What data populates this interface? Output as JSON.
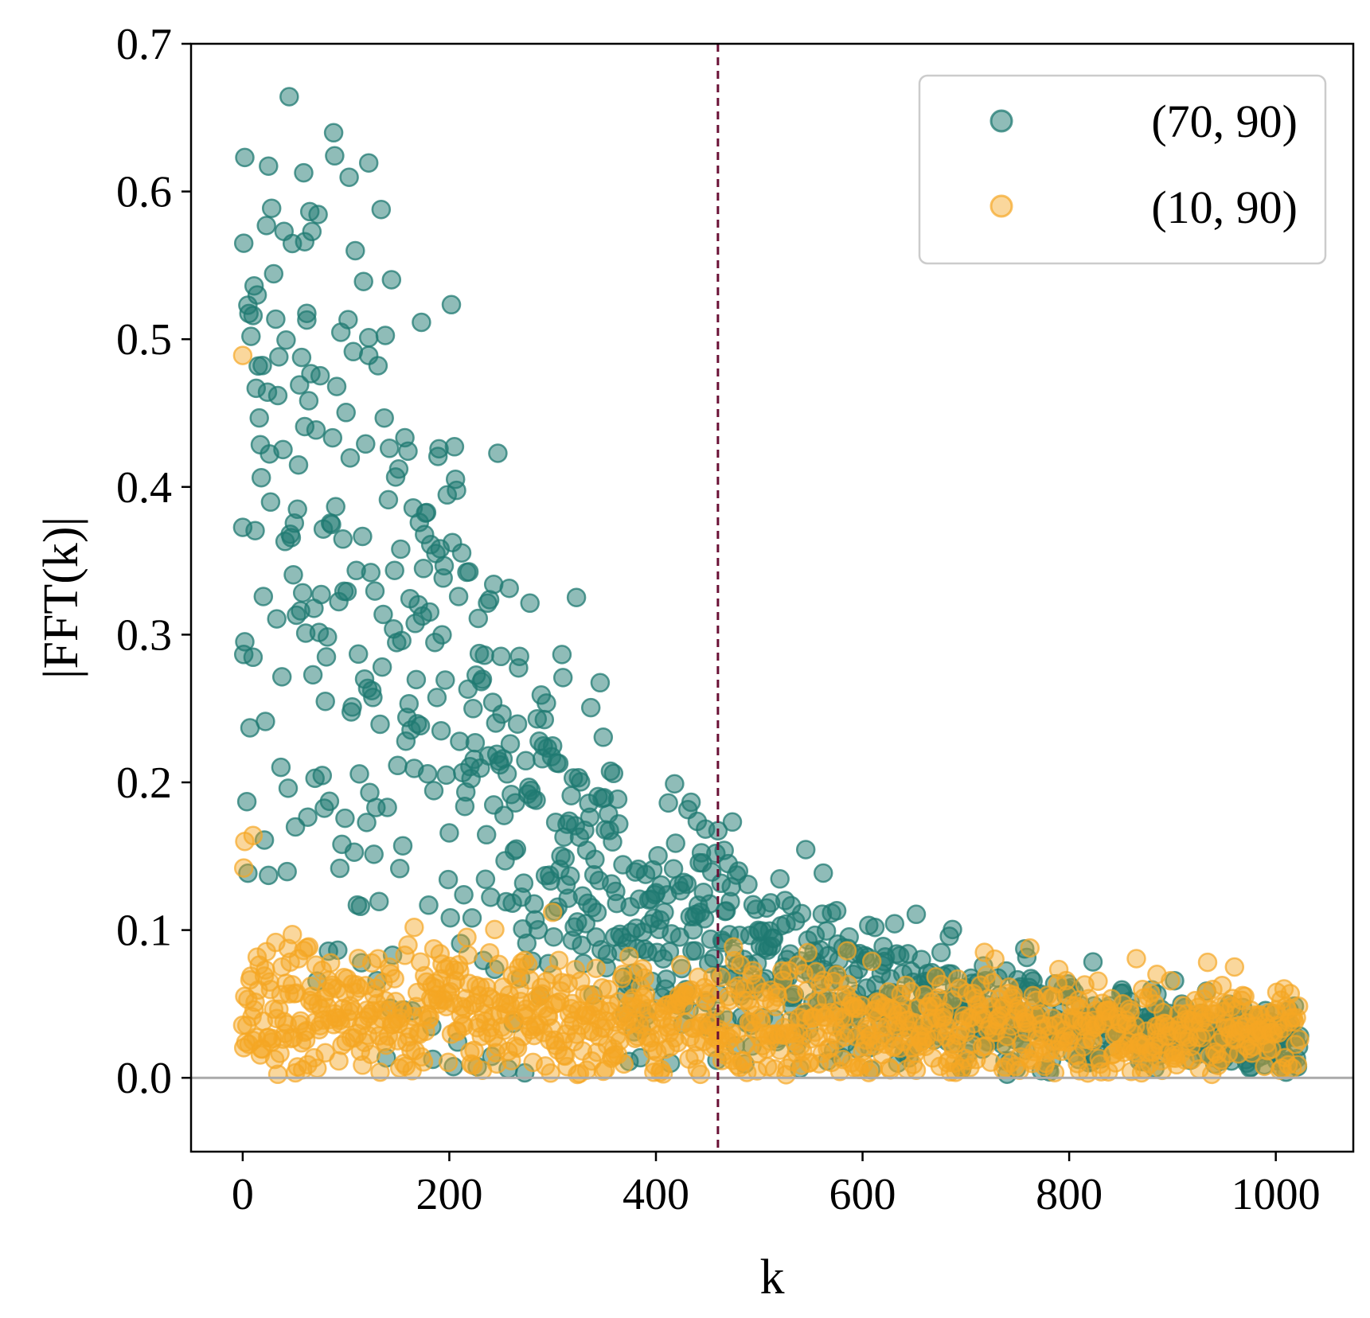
{
  "chart_data": {
    "type": "scatter",
    "xlabel": "k",
    "ylabel": "|FFT(k)|",
    "xlim": [
      -50,
      1075
    ],
    "ylim": [
      -0.05,
      0.7
    ],
    "xticks": [
      0,
      200,
      400,
      600,
      800,
      1000
    ],
    "yticks": [
      0.0,
      0.1,
      0.2,
      0.3,
      0.4,
      0.5,
      0.6,
      0.7
    ],
    "xtick_labels": [
      "0",
      "200",
      "400",
      "600",
      "800",
      "1000"
    ],
    "ytick_labels": [
      "0.0",
      "0.1",
      "0.2",
      "0.3",
      "0.4",
      "0.5",
      "0.6",
      "0.7"
    ],
    "hline_y": 0.0,
    "vline_x": 460,
    "legend_position": "top-right",
    "grid": false,
    "n_points_per_series": 1024,
    "series": [
      {
        "name": "(70, 90)",
        "color": "#1f7a72",
        "alpha": 0.5,
        "anchors": [
          {
            "k": 0,
            "y": 0.44
          },
          {
            "k": 100,
            "y": 0.32
          },
          {
            "k": 200,
            "y": 0.24
          },
          {
            "k": 300,
            "y": 0.16
          },
          {
            "k": 400,
            "y": 0.11
          },
          {
            "k": 500,
            "y": 0.075
          },
          {
            "k": 600,
            "y": 0.055
          },
          {
            "k": 800,
            "y": 0.035
          },
          {
            "k": 1023,
            "y": 0.025
          }
        ],
        "spread": 0.45,
        "highlights": [
          {
            "k": 2,
            "y": 0.623
          },
          {
            "k": 1,
            "y": 0.565
          },
          {
            "k": 60,
            "y": 0.566
          },
          {
            "k": 5,
            "y": 0.523
          },
          {
            "k": 62,
            "y": 0.513
          },
          {
            "k": 122,
            "y": 0.501
          },
          {
            "k": 122,
            "y": 0.489
          },
          {
            "k": 10,
            "y": 0.516
          },
          {
            "k": 25,
            "y": 0.137
          },
          {
            "k": 243,
            "y": 0.334
          },
          {
            "k": 470,
            "y": 0.145
          },
          {
            "k": 525,
            "y": 0.12
          }
        ]
      },
      {
        "name": "(10, 90)",
        "color": "#f5a623",
        "alpha": 0.45,
        "anchors": [
          {
            "k": 0,
            "y": 0.045
          },
          {
            "k": 200,
            "y": 0.04
          },
          {
            "k": 400,
            "y": 0.038
          },
          {
            "k": 600,
            "y": 0.036
          },
          {
            "k": 800,
            "y": 0.034
          },
          {
            "k": 1023,
            "y": 0.032
          }
        ],
        "spread": 0.55,
        "highlights": [
          {
            "k": 0,
            "y": 0.489
          },
          {
            "k": 2,
            "y": 0.16
          },
          {
            "k": 10,
            "y": 0.164
          },
          {
            "k": 1,
            "y": 0.142
          },
          {
            "k": 300,
            "y": 0.112
          },
          {
            "k": 48,
            "y": 0.097
          },
          {
            "k": 62,
            "y": 0.088
          },
          {
            "k": 885,
            "y": 0.07
          },
          {
            "k": 960,
            "y": 0.075
          }
        ]
      }
    ]
  }
}
